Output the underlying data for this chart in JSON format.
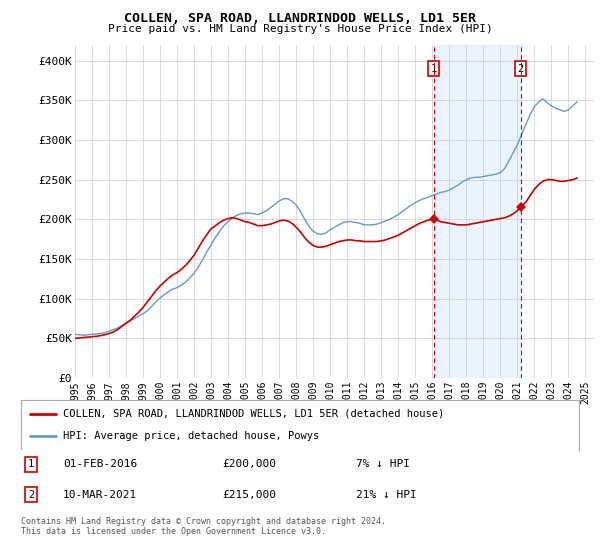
{
  "title": "COLLEN, SPA ROAD, LLANDRINDOD WELLS, LD1 5ER",
  "subtitle": "Price paid vs. HM Land Registry's House Price Index (HPI)",
  "ylabel_ticks": [
    "£0",
    "£50K",
    "£100K",
    "£150K",
    "£200K",
    "£250K",
    "£300K",
    "£350K",
    "£400K"
  ],
  "ytick_values": [
    0,
    50000,
    100000,
    150000,
    200000,
    250000,
    300000,
    350000,
    400000
  ],
  "ylim": [
    0,
    420000
  ],
  "xlim_start": 1995.0,
  "xlim_end": 2025.5,
  "xtick_years": [
    1995,
    1996,
    1997,
    1998,
    1999,
    2000,
    2001,
    2002,
    2003,
    2004,
    2005,
    2006,
    2007,
    2008,
    2009,
    2010,
    2011,
    2012,
    2013,
    2014,
    2015,
    2016,
    2017,
    2018,
    2019,
    2020,
    2021,
    2022,
    2023,
    2024,
    2025
  ],
  "sale1_x": 2016.08,
  "sale1_y": 200000,
  "sale2_x": 2021.19,
  "sale2_y": 215000,
  "sale1_label": "1",
  "sale2_label": "2",
  "legend_line1": "COLLEN, SPA ROAD, LLANDRINDOD WELLS, LD1 5ER (detached house)",
  "legend_line2": "HPI: Average price, detached house, Powys",
  "annot1_date": "01-FEB-2016",
  "annot1_price": "£200,000",
  "annot1_hpi": "7% ↓ HPI",
  "annot2_date": "10-MAR-2021",
  "annot2_price": "£215,000",
  "annot2_hpi": "21% ↓ HPI",
  "footer": "Contains HM Land Registry data © Crown copyright and database right 2024.\nThis data is licensed under the Open Government Licence v3.0.",
  "red_color": "#cc0000",
  "blue_color": "#6699cc",
  "bg_color": "#ffffff",
  "grid_color": "#cccccc",
  "shade_color": "#ddeeff",
  "hpi_data_x": [
    1995.0,
    1995.25,
    1995.5,
    1995.75,
    1996.0,
    1996.25,
    1996.5,
    1996.75,
    1997.0,
    1997.25,
    1997.5,
    1997.75,
    1998.0,
    1998.25,
    1998.5,
    1998.75,
    1999.0,
    1999.25,
    1999.5,
    1999.75,
    2000.0,
    2000.25,
    2000.5,
    2000.75,
    2001.0,
    2001.25,
    2001.5,
    2001.75,
    2002.0,
    2002.25,
    2002.5,
    2002.75,
    2003.0,
    2003.25,
    2003.5,
    2003.75,
    2004.0,
    2004.25,
    2004.5,
    2004.75,
    2005.0,
    2005.25,
    2005.5,
    2005.75,
    2006.0,
    2006.25,
    2006.5,
    2006.75,
    2007.0,
    2007.25,
    2007.5,
    2007.75,
    2008.0,
    2008.25,
    2008.5,
    2008.75,
    2009.0,
    2009.25,
    2009.5,
    2009.75,
    2010.0,
    2010.25,
    2010.5,
    2010.75,
    2011.0,
    2011.25,
    2011.5,
    2011.75,
    2012.0,
    2012.25,
    2012.5,
    2012.75,
    2013.0,
    2013.25,
    2013.5,
    2013.75,
    2014.0,
    2014.25,
    2014.5,
    2014.75,
    2015.0,
    2015.25,
    2015.5,
    2015.75,
    2016.0,
    2016.25,
    2016.5,
    2016.75,
    2017.0,
    2017.25,
    2017.5,
    2017.75,
    2018.0,
    2018.25,
    2018.5,
    2018.75,
    2019.0,
    2019.25,
    2019.5,
    2019.75,
    2020.0,
    2020.25,
    2020.5,
    2020.75,
    2021.0,
    2021.25,
    2021.5,
    2021.75,
    2022.0,
    2022.25,
    2022.5,
    2022.75,
    2023.0,
    2023.25,
    2023.5,
    2023.75,
    2024.0,
    2024.25,
    2024.5
  ],
  "hpi_data_y": [
    55000,
    54500,
    54000,
    54500,
    55000,
    55500,
    56000,
    57000,
    59000,
    61000,
    63000,
    66000,
    69000,
    72000,
    75000,
    78000,
    81000,
    85000,
    90000,
    96000,
    101000,
    105000,
    109000,
    112000,
    114000,
    117000,
    121000,
    126000,
    132000,
    140000,
    149000,
    159000,
    168000,
    177000,
    185000,
    192000,
    197000,
    202000,
    205000,
    207000,
    208000,
    208000,
    207000,
    206000,
    208000,
    211000,
    215000,
    219000,
    223000,
    226000,
    226000,
    223000,
    218000,
    210000,
    200000,
    191000,
    185000,
    182000,
    181000,
    183000,
    187000,
    190000,
    193000,
    196000,
    197000,
    197000,
    196000,
    195000,
    193000,
    193000,
    193000,
    194000,
    196000,
    198000,
    200000,
    203000,
    206000,
    210000,
    214000,
    218000,
    221000,
    224000,
    226000,
    228000,
    230000,
    232000,
    234000,
    235000,
    237000,
    240000,
    243000,
    247000,
    250000,
    252000,
    253000,
    253000,
    254000,
    255000,
    256000,
    257000,
    259000,
    264000,
    274000,
    284000,
    294000,
    307000,
    320000,
    332000,
    342000,
    348000,
    352000,
    347000,
    343000,
    340000,
    338000,
    336000,
    338000,
    343000,
    348000
  ],
  "red_data_x": [
    1995.0,
    1995.25,
    1995.5,
    1995.75,
    1996.0,
    1996.25,
    1996.5,
    1996.75,
    1997.0,
    1997.25,
    1997.5,
    1997.75,
    1998.0,
    1998.25,
    1998.5,
    1998.75,
    1999.0,
    1999.25,
    1999.5,
    1999.75,
    2000.0,
    2000.25,
    2000.5,
    2000.75,
    2001.0,
    2001.25,
    2001.5,
    2001.75,
    2002.0,
    2002.25,
    2002.5,
    2002.75,
    2003.0,
    2003.25,
    2003.5,
    2003.75,
    2004.0,
    2004.25,
    2004.5,
    2004.75,
    2005.0,
    2005.25,
    2005.5,
    2005.75,
    2006.0,
    2006.25,
    2006.5,
    2006.75,
    2007.0,
    2007.25,
    2007.5,
    2007.75,
    2008.0,
    2008.25,
    2008.5,
    2008.75,
    2009.0,
    2009.25,
    2009.5,
    2009.75,
    2010.0,
    2010.25,
    2010.5,
    2010.75,
    2011.0,
    2011.25,
    2011.5,
    2011.75,
    2012.0,
    2012.25,
    2012.5,
    2012.75,
    2013.0,
    2013.25,
    2013.5,
    2013.75,
    2014.0,
    2014.25,
    2014.5,
    2014.75,
    2015.0,
    2015.25,
    2015.5,
    2015.75,
    2016.0,
    2016.08,
    2016.25,
    2016.5,
    2016.75,
    2017.0,
    2017.25,
    2017.5,
    2017.75,
    2018.0,
    2018.25,
    2018.5,
    2018.75,
    2019.0,
    2019.25,
    2019.5,
    2019.75,
    2020.0,
    2020.25,
    2020.5,
    2020.75,
    2021.0,
    2021.19,
    2021.5,
    2021.75,
    2022.0,
    2022.25,
    2022.5,
    2022.75,
    2023.0,
    2023.25,
    2023.5,
    2023.75,
    2024.0,
    2024.25,
    2024.5
  ],
  "red_data_y": [
    50000,
    50500,
    51000,
    51500,
    52000,
    52500,
    53500,
    54500,
    56000,
    58000,
    61000,
    65000,
    69000,
    73000,
    78000,
    83000,
    89000,
    96000,
    103000,
    110000,
    116000,
    121000,
    126000,
    130000,
    133000,
    137000,
    142000,
    148000,
    155000,
    164000,
    173000,
    181000,
    188000,
    192000,
    196000,
    199000,
    201000,
    202000,
    201000,
    199000,
    197000,
    196000,
    194000,
    192000,
    192000,
    193000,
    194000,
    196000,
    198000,
    199000,
    198000,
    195000,
    190000,
    184000,
    177000,
    171000,
    167000,
    165000,
    165000,
    166000,
    168000,
    170000,
    172000,
    173000,
    174000,
    174000,
    173000,
    173000,
    172000,
    172000,
    172000,
    172000,
    173000,
    174000,
    176000,
    178000,
    180000,
    183000,
    186000,
    189000,
    192000,
    195000,
    197000,
    199000,
    200000,
    200500,
    199000,
    197000,
    196000,
    195000,
    194000,
    193000,
    193000,
    193000,
    194000,
    195000,
    196000,
    197000,
    198000,
    199000,
    200000,
    201000,
    202000,
    204000,
    207000,
    211000,
    215000,
    222000,
    230000,
    238000,
    244000,
    248000,
    250000,
    250000,
    249000,
    248000,
    248000,
    249000,
    250000,
    252000
  ]
}
